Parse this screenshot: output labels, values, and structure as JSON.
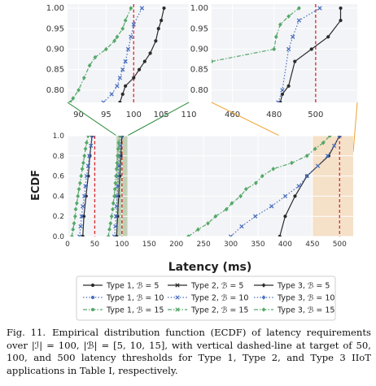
{
  "caption": {
    "label": "Fig. 11.",
    "text": "Empirical distribution function (ECDF) of latency requirements over |ℐ| = 100, |ℬ| = [5, 10, 15], with vertical dashed-line at target of 50, 100, and 500 latency thresholds for Type 1, Type 2, and Type 3 IIoT applications in Table I, respectively."
  },
  "colors": {
    "black": "#2b2b2b",
    "blue": "#4a6fbf",
    "green": "#55a868",
    "threshold": "#d62728",
    "shade_green": "#b7c9a8",
    "shade_orange": "#f5dcbf",
    "zoom_line_left": "#2e8b3e",
    "zoom_line_right": "#f0a030"
  },
  "chart_data": [
    {
      "id": "main",
      "type": "line",
      "xlabel": "Latency (ms)",
      "ylabel": "ECDF",
      "xlim": [
        0,
        525
      ],
      "ylim": [
        0,
        1.0
      ],
      "xticks": [
        0,
        50,
        100,
        150,
        200,
        250,
        300,
        350,
        400,
        450,
        500
      ],
      "yticks": [
        0.0,
        0.2,
        0.4,
        0.6,
        0.8,
        1.0
      ],
      "thresholds": [
        50,
        100,
        500
      ],
      "shaded_bands": [
        [
          90,
          110,
          "green"
        ],
        [
          450,
          525,
          "orange"
        ]
      ],
      "grid": true,
      "legend_position": "bottom",
      "series": [
        {
          "name": "Type 1, ℬ = 5",
          "color": "black",
          "style": "solid",
          "marker": "circle",
          "points": [
            [
              28,
              0.0
            ],
            [
              30,
              0.2
            ],
            [
              34,
              0.4
            ],
            [
              38,
              0.6
            ],
            [
              41,
              0.8
            ],
            [
              45,
              1.0
            ]
          ]
        },
        {
          "name": "Type 1, ℬ = 10",
          "color": "blue",
          "style": "dotted",
          "marker": "x",
          "points": [
            [
              22,
              0.0
            ],
            [
              24,
              0.1
            ],
            [
              26,
              0.2
            ],
            [
              28,
              0.3
            ],
            [
              31,
              0.4
            ],
            [
              33,
              0.5
            ],
            [
              35,
              0.6
            ],
            [
              38,
              0.7
            ],
            [
              40,
              0.8
            ],
            [
              43,
              0.9
            ],
            [
              46,
              1.0
            ]
          ]
        },
        {
          "name": "Type 1, ℬ = 15",
          "color": "green",
          "style": "dashdot",
          "marker": "diamond",
          "points": [
            [
              8,
              0.0
            ],
            [
              10,
              0.07
            ],
            [
              12,
              0.13
            ],
            [
              14,
              0.2
            ],
            [
              15,
              0.27
            ],
            [
              17,
              0.33
            ],
            [
              19,
              0.4
            ],
            [
              21,
              0.47
            ],
            [
              23,
              0.53
            ],
            [
              25,
              0.6
            ],
            [
              27,
              0.67
            ],
            [
              29,
              0.73
            ],
            [
              31,
              0.8
            ],
            [
              33,
              0.87
            ],
            [
              35,
              0.93
            ],
            [
              38,
              1.0
            ]
          ]
        },
        {
          "name": "Type 2, ℬ = 5",
          "color": "black",
          "style": "solid",
          "marker": "circle",
          "points": [
            [
              90,
              0.0
            ],
            [
              92,
              0.2
            ],
            [
              94,
              0.4
            ],
            [
              96,
              0.6
            ],
            [
              98,
              0.8
            ],
            [
              100,
              1.0
            ]
          ]
        },
        {
          "name": "Type 2, ℬ = 10",
          "color": "blue",
          "style": "dotted",
          "marker": "x",
          "points": [
            [
              86,
              0.0
            ],
            [
              88,
              0.1
            ],
            [
              89,
              0.2
            ],
            [
              90,
              0.3
            ],
            [
              91,
              0.4
            ],
            [
              92,
              0.5
            ],
            [
              93,
              0.6
            ],
            [
              94,
              0.7
            ],
            [
              95,
              0.8
            ],
            [
              97,
              0.9
            ],
            [
              99,
              1.0
            ]
          ]
        },
        {
          "name": "Type 2, ℬ = 15",
          "color": "green",
          "style": "dashdot",
          "marker": "diamond",
          "points": [
            [
              75,
              0.0
            ],
            [
              77,
              0.07
            ],
            [
              79,
              0.13
            ],
            [
              81,
              0.2
            ],
            [
              83,
              0.27
            ],
            [
              84,
              0.33
            ],
            [
              86,
              0.4
            ],
            [
              87,
              0.47
            ],
            [
              88,
              0.53
            ],
            [
              89,
              0.6
            ],
            [
              90,
              0.67
            ],
            [
              91,
              0.73
            ],
            [
              92,
              0.8
            ],
            [
              93,
              0.87
            ],
            [
              94,
              0.93
            ],
            [
              96,
              1.0
            ]
          ]
        },
        {
          "name": "Type 3, ℬ = 5",
          "color": "black",
          "style": "solid",
          "marker": "circle",
          "points": [
            [
              390,
              0.0
            ],
            [
              400,
              0.2
            ],
            [
              418,
              0.4
            ],
            [
              440,
              0.6
            ],
            [
              480,
              0.8
            ],
            [
              500,
              1.0
            ]
          ]
        },
        {
          "name": "Type 3, ℬ = 10",
          "color": "blue",
          "style": "dotted",
          "marker": "x",
          "points": [
            [
              300,
              0.0
            ],
            [
              320,
              0.1
            ],
            [
              345,
              0.2
            ],
            [
              375,
              0.3
            ],
            [
              400,
              0.4
            ],
            [
              425,
              0.5
            ],
            [
              440,
              0.6
            ],
            [
              460,
              0.7
            ],
            [
              478,
              0.8
            ],
            [
              490,
              0.9
            ],
            [
              500,
              1.0
            ]
          ]
        },
        {
          "name": "Type 3, ℬ = 15",
          "color": "green",
          "style": "dashdot",
          "marker": "diamond",
          "points": [
            [
              222,
              0.0
            ],
            [
              240,
              0.07
            ],
            [
              258,
              0.13
            ],
            [
              272,
              0.2
            ],
            [
              292,
              0.27
            ],
            [
              302,
              0.33
            ],
            [
              318,
              0.4
            ],
            [
              328,
              0.47
            ],
            [
              346,
              0.53
            ],
            [
              358,
              0.6
            ],
            [
              378,
              0.67
            ],
            [
              412,
              0.73
            ],
            [
              440,
              0.8
            ],
            [
              455,
              0.87
            ],
            [
              470,
              0.93
            ],
            [
              482,
              1.0
            ]
          ]
        }
      ]
    },
    {
      "id": "zoom_left",
      "type": "line",
      "xlim": [
        88,
        110
      ],
      "ylim": [
        0.77,
        1.01
      ],
      "xticks": [
        90,
        95,
        100,
        105,
        110
      ],
      "yticks": [
        0.8,
        0.85,
        0.9,
        0.95,
        1.0
      ],
      "threshold": 100,
      "series": [
        {
          "color": "black",
          "style": "solid",
          "marker": "circle",
          "points": [
            [
              97.5,
              0.77
            ],
            [
              98,
              0.79
            ],
            [
              98.5,
              0.81
            ],
            [
              100,
              0.83
            ],
            [
              101,
              0.85
            ],
            [
              102,
              0.87
            ],
            [
              103,
              0.89
            ],
            [
              104,
              0.92
            ],
            [
              104.5,
              0.95
            ],
            [
              105,
              0.97
            ],
            [
              105.5,
              1.0
            ]
          ]
        },
        {
          "color": "blue",
          "style": "dotted",
          "marker": "x",
          "points": [
            [
              94.5,
              0.77
            ],
            [
              96,
              0.79
            ],
            [
              97,
              0.81
            ],
            [
              97.5,
              0.83
            ],
            [
              98,
              0.85
            ],
            [
              98.5,
              0.87
            ],
            [
              99,
              0.9
            ],
            [
              99.5,
              0.93
            ],
            [
              100,
              0.96
            ],
            [
              101.5,
              1.0
            ]
          ]
        },
        {
          "color": "green",
          "style": "dashdot",
          "marker": "diamond",
          "points": [
            [
              88.5,
              0.77
            ],
            [
              89,
              0.78
            ],
            [
              90,
              0.8
            ],
            [
              91,
              0.83
            ],
            [
              92,
              0.86
            ],
            [
              93,
              0.88
            ],
            [
              95,
              0.9
            ],
            [
              96.5,
              0.92
            ],
            [
              97,
              0.93
            ],
            [
              98,
              0.95
            ],
            [
              98.5,
              0.97
            ],
            [
              99.5,
              1.0
            ]
          ]
        }
      ]
    },
    {
      "id": "zoom_right",
      "type": "line",
      "xlim": [
        450,
        520
      ],
      "ylim": [
        0.77,
        1.01
      ],
      "xticks": [
        460,
        480,
        500
      ],
      "yticks": [
        0.8,
        0.85,
        0.9,
        0.95,
        1.0
      ],
      "threshold": 500,
      "series": [
        {
          "color": "black",
          "style": "solid",
          "marker": "circle",
          "points": [
            [
              483,
              0.77
            ],
            [
              484,
              0.79
            ],
            [
              487,
              0.81
            ],
            [
              490,
              0.87
            ],
            [
              498,
              0.9
            ],
            [
              506,
              0.93
            ],
            [
              512,
              0.97
            ],
            [
              512,
              1.0
            ]
          ]
        },
        {
          "color": "blue",
          "style": "dotted",
          "marker": "x",
          "points": [
            [
              482,
              0.77
            ],
            [
              484,
              0.8
            ],
            [
              487,
              0.9
            ],
            [
              489,
              0.93
            ],
            [
              492,
              0.97
            ],
            [
              502,
              1.0
            ]
          ]
        },
        {
          "color": "green",
          "style": "dashdot",
          "marker": "diamond",
          "points": [
            [
              450,
              0.87
            ],
            [
              480,
              0.9
            ],
            [
              481,
              0.93
            ],
            [
              483,
              0.96
            ],
            [
              487,
              0.98
            ],
            [
              492,
              1.0
            ]
          ]
        }
      ]
    }
  ],
  "legend": {
    "items": [
      {
        "label": "Type 1, ℬ = 5",
        "color": "black",
        "style": "solid",
        "marker": "circle"
      },
      {
        "label": "Type 2, ℬ = 5",
        "color": "black",
        "style": "solid",
        "marker": "x"
      },
      {
        "label": "Type 3, ℬ = 5",
        "color": "black",
        "style": "solid",
        "marker": "diamond"
      },
      {
        "label": "Type 1, ℬ = 10",
        "color": "blue",
        "style": "dotted",
        "marker": "circle"
      },
      {
        "label": "Type 2, ℬ = 10",
        "color": "blue",
        "style": "dotted",
        "marker": "x"
      },
      {
        "label": "Type 3, ℬ = 10",
        "color": "blue",
        "style": "dotted",
        "marker": "diamond"
      },
      {
        "label": "Type 1, ℬ = 15",
        "color": "green",
        "style": "dashdot",
        "marker": "circle"
      },
      {
        "label": "Type 2, ℬ = 15",
        "color": "green",
        "style": "dashdot",
        "marker": "x"
      },
      {
        "label": "Type 3, ℬ = 15",
        "color": "green",
        "style": "dashdot",
        "marker": "diamond"
      }
    ]
  }
}
